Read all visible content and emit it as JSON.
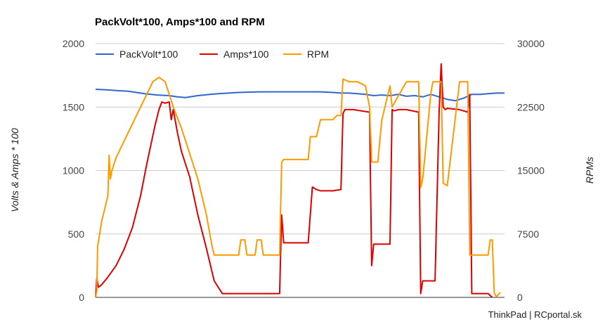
{
  "chart_data": {
    "type": "line",
    "title": "PackVolt*100, Amps*100 and RPM",
    "ylabel": "Volts & Amps * 100",
    "y2label": "RPMs",
    "ylim": [
      0,
      2000
    ],
    "y2lim": [
      0,
      30000
    ],
    "yticks": [
      "0",
      "500",
      "1000",
      "1500",
      "2000"
    ],
    "y2ticks": [
      "0",
      "7500",
      "15000",
      "22500",
      "30000"
    ],
    "xlim": [
      0,
      100
    ],
    "grid": true,
    "legend_position": "top",
    "footer": "ThinkPad | RCportal.sk",
    "series": [
      {
        "name": "PackVolt*100",
        "axis": "left",
        "color": "#3366cc",
        "x": [
          0,
          3,
          5,
          8,
          10,
          12,
          15,
          18,
          20,
          22,
          25,
          28,
          30,
          35,
          40,
          45,
          50,
          55,
          58,
          60,
          62,
          64,
          66,
          68,
          70,
          72,
          74,
          76,
          78,
          80,
          82,
          84,
          86,
          88,
          90,
          92,
          94,
          96,
          98,
          100
        ],
        "values": [
          1640,
          1635,
          1630,
          1625,
          1615,
          1605,
          1595,
          1590,
          1580,
          1575,
          1590,
          1600,
          1605,
          1615,
          1620,
          1620,
          1620,
          1620,
          1615,
          1610,
          1610,
          1605,
          1600,
          1590,
          1595,
          1590,
          1600,
          1585,
          1590,
          1580,
          1600,
          1580,
          1560,
          1550,
          1570,
          1600,
          1600,
          1605,
          1610,
          1610
        ]
      },
      {
        "name": "Amps*100",
        "axis": "left",
        "color": "#dc0000",
        "x": [
          0,
          0.3,
          0.7,
          1.5,
          3,
          5,
          7,
          9,
          11,
          12.5,
          13.5,
          14.5,
          15.5,
          16.2,
          17,
          18,
          18.5,
          19,
          20,
          21,
          23,
          25,
          27,
          29,
          31,
          33,
          35,
          40,
          45,
          45.5,
          46,
          47,
          50,
          52,
          53,
          54,
          55,
          58,
          60,
          60.5,
          61,
          62,
          62.5,
          63,
          67,
          67.5,
          68,
          68.5,
          70,
          72,
          72.5,
          73,
          74,
          76,
          79,
          79.5,
          80,
          83,
          84,
          84.5,
          85,
          85.5,
          86,
          89,
          91,
          91.5,
          92,
          96,
          97
        ],
        "values": [
          0,
          150,
          80,
          100,
          160,
          250,
          380,
          550,
          800,
          1050,
          1200,
          1350,
          1480,
          1540,
          1530,
          1540,
          1400,
          1480,
          1300,
          1150,
          950,
          650,
          400,
          130,
          30,
          30,
          30,
          30,
          30,
          650,
          430,
          430,
          430,
          430,
          870,
          850,
          840,
          840,
          850,
          1450,
          1480,
          1480,
          1480,
          1480,
          1460,
          250,
          420,
          420,
          420,
          420,
          1480,
          1470,
          1480,
          1480,
          1460,
          30,
          130,
          130,
          1460,
          1840,
          1500,
          1480,
          1490,
          1480,
          1460,
          1600,
          30,
          30,
          0
        ]
      },
      {
        "name": "RPM",
        "axis": "right",
        "color": "#ff9900",
        "x": [
          0,
          0.3,
          0.5,
          1,
          1.5,
          3,
          3.3,
          3.6,
          4,
          5,
          7,
          9,
          11,
          12.5,
          14,
          15.5,
          17,
          18,
          19,
          21,
          23,
          25,
          27,
          28.5,
          29,
          29.5,
          31,
          35,
          35.5,
          36.5,
          37,
          39,
          39.5,
          40.5,
          41,
          45,
          45.5,
          46,
          50,
          52,
          52.5,
          54,
          55,
          58,
          59,
          60,
          60.5,
          62,
          64,
          66,
          67,
          67.5,
          69,
          70,
          72,
          72.5,
          76,
          79,
          79.5,
          80,
          82,
          82.5,
          84,
          84.5,
          85,
          86,
          89,
          91,
          91.5,
          92,
          96,
          96.5,
          97,
          97.5,
          98,
          99
        ],
        "values": [
          0,
          800,
          6000,
          7500,
          9000,
          12000,
          16800,
          14000,
          15000,
          16500,
          18500,
          20500,
          22500,
          24000,
          25500,
          26000,
          25500,
          24000,
          22500,
          20000,
          17000,
          14000,
          10000,
          6000,
          5000,
          5000,
          5000,
          5000,
          6800,
          6800,
          5000,
          5000,
          6800,
          6800,
          5000,
          5000,
          16000,
          16300,
          16300,
          16300,
          19000,
          19000,
          21000,
          21000,
          21500,
          21500,
          25800,
          25500,
          25500,
          25000,
          22500,
          16000,
          16000,
          21000,
          25000,
          22500,
          25500,
          25500,
          13000,
          14000,
          24200,
          25500,
          25500,
          25500,
          13500,
          13200,
          25500,
          25500,
          5000,
          5000,
          5000,
          6800,
          6800,
          500,
          100,
          600
        ]
      }
    ]
  }
}
